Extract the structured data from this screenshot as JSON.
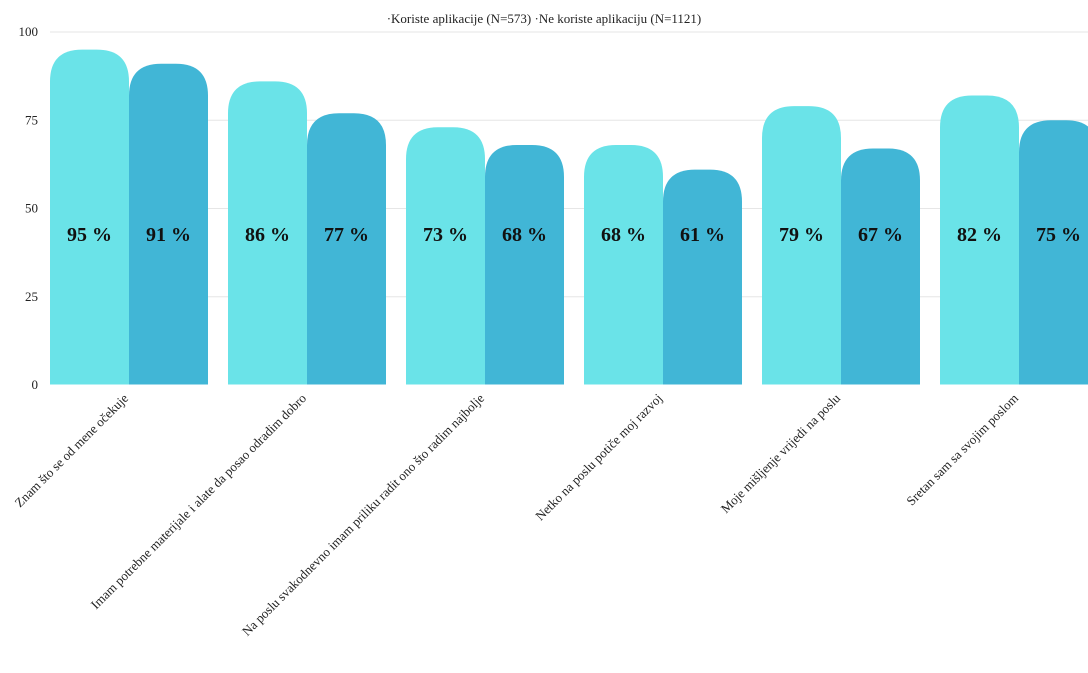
{
  "chart_data": {
    "type": "bar",
    "legend_position": "top-center",
    "legend_text": [
      "·Koriste aplikacije (N=573)",
      "·Ne koriste aplikaciju (N=1121)"
    ],
    "ylim": [
      0,
      100
    ],
    "y_ticks": [
      "0",
      "25",
      "50",
      "75",
      "100"
    ],
    "y_tick_values": [
      0,
      25,
      50,
      75,
      100
    ],
    "grid": true,
    "categories": [
      "Znam što se od mene očekuje",
      "Imam potrebne materijale i alate da posao odradim dobro",
      "Na poslu svakodnevno imam priliku radit ono što radim najbolje",
      "Netko na poslu potiče moj razvoj",
      "Moje mišljenje vrijedi na poslu",
      "Sretan sam sa svojim poslom"
    ],
    "series": [
      {
        "name": "Koriste aplikacije (N=573)",
        "color": "#6ae3e8",
        "values": [
          95,
          86,
          73,
          68,
          79,
          82
        ],
        "labels": [
          "95 %",
          "86 %",
          "73 %",
          "68 %",
          "79 %",
          "82 %"
        ]
      },
      {
        "name": "Ne koriste aplikaciju (N=1121)",
        "color": "#41b6d6",
        "values": [
          91,
          77,
          68,
          61,
          67,
          75
        ],
        "labels": [
          "91 %",
          "77 %",
          "68 %",
          "61 %",
          "67 %",
          "75 %"
        ]
      }
    ]
  }
}
